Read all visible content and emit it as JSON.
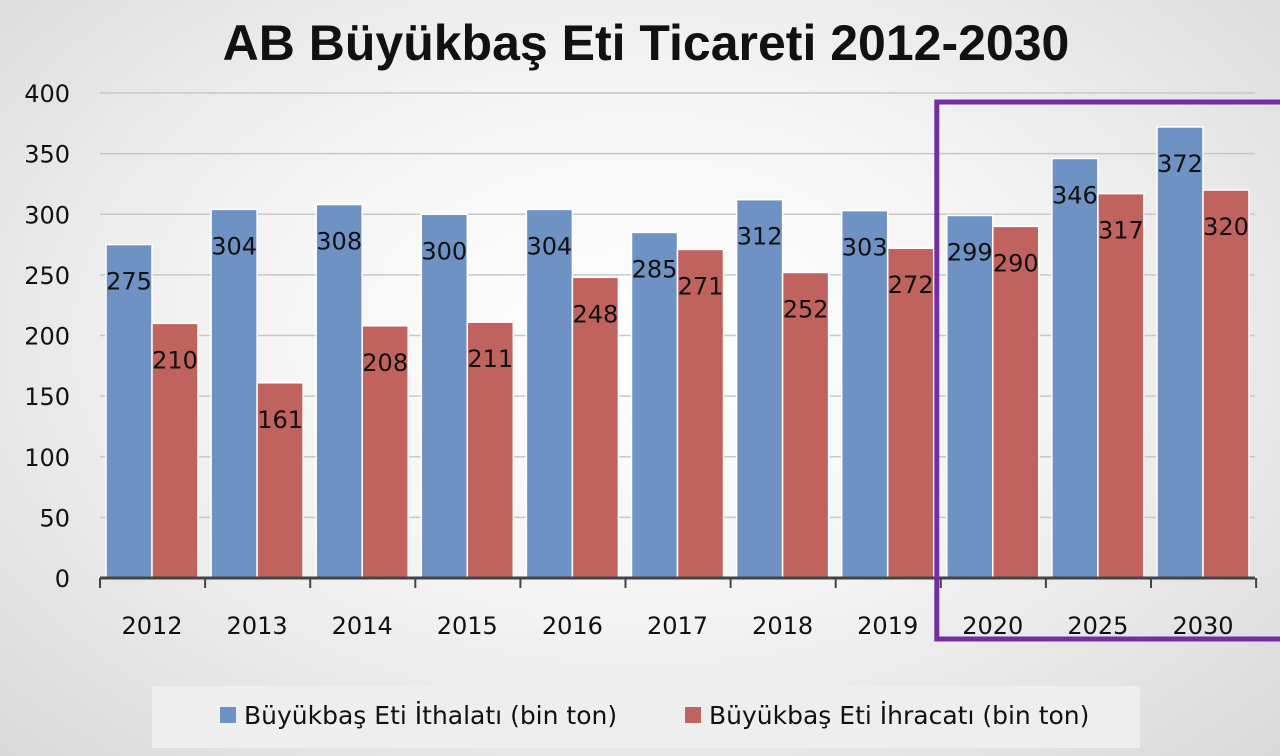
{
  "chart_data": {
    "type": "bar",
    "title": "AB Büyükbaş Eti Ticareti 2012-2030",
    "xlabel": "",
    "ylabel": "",
    "categories": [
      "2012",
      "2013",
      "2014",
      "2015",
      "2016",
      "2017",
      "2018",
      "2019",
      "2020",
      "2025",
      "2030"
    ],
    "series": [
      {
        "name": "Büyükbaş Eti İthalatı (bin ton)",
        "color": "#6f92c4",
        "values": [
          275,
          304,
          308,
          300,
          304,
          285,
          312,
          303,
          299,
          346,
          372
        ]
      },
      {
        "name": "Büyükbaş Eti İhracatı (bin ton)",
        "color": "#c0635f",
        "values": [
          210,
          161,
          208,
          211,
          248,
          271,
          252,
          272,
          290,
          317,
          320
        ]
      }
    ],
    "ylim": [
      0,
      400
    ],
    "yticks": [
      0,
      50,
      100,
      150,
      200,
      250,
      300,
      350,
      400
    ],
    "grid": true,
    "legend_position": "bottom",
    "highlight": {
      "categories": [
        "2020",
        "2025",
        "2030"
      ],
      "color": "#7030a0"
    }
  }
}
